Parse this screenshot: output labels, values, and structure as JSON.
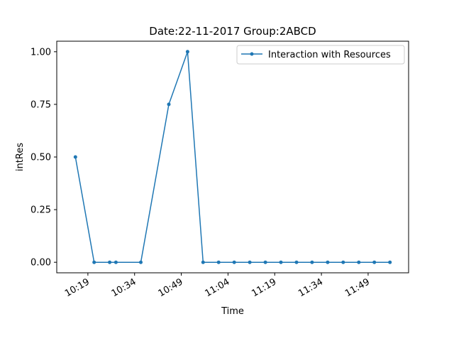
{
  "chart_data": {
    "type": "line",
    "title": "Date:22-11-2017  Group:2ABCD",
    "xlabel": "Time",
    "ylabel": "intRes",
    "x_ticks": [
      "10:19",
      "10:34",
      "10:49",
      "11:04",
      "11:19",
      "11:34",
      "11:49"
    ],
    "y_ticks": [
      "0.00",
      "0.25",
      "0.50",
      "0.75",
      "1.00"
    ],
    "ylim": [
      -0.05,
      1.05
    ],
    "grid": false,
    "legend_position": "top-right",
    "series": [
      {
        "name": "Interaction with Resources",
        "color": "#1f77b4",
        "marker": "circle",
        "x": [
          "10:15",
          "10:21",
          "10:26",
          "10:28",
          "10:36",
          "10:45",
          "10:51",
          "10:56",
          "11:01",
          "11:06",
          "11:11",
          "11:16",
          "11:21",
          "11:26",
          "11:31",
          "11:36",
          "11:41",
          "11:46",
          "11:51",
          "11:56"
        ],
        "values": [
          0.5,
          0,
          0,
          0,
          0,
          0.75,
          1.0,
          0,
          0,
          0,
          0,
          0,
          0,
          0,
          0,
          0,
          0,
          0,
          0,
          0
        ]
      }
    ]
  }
}
